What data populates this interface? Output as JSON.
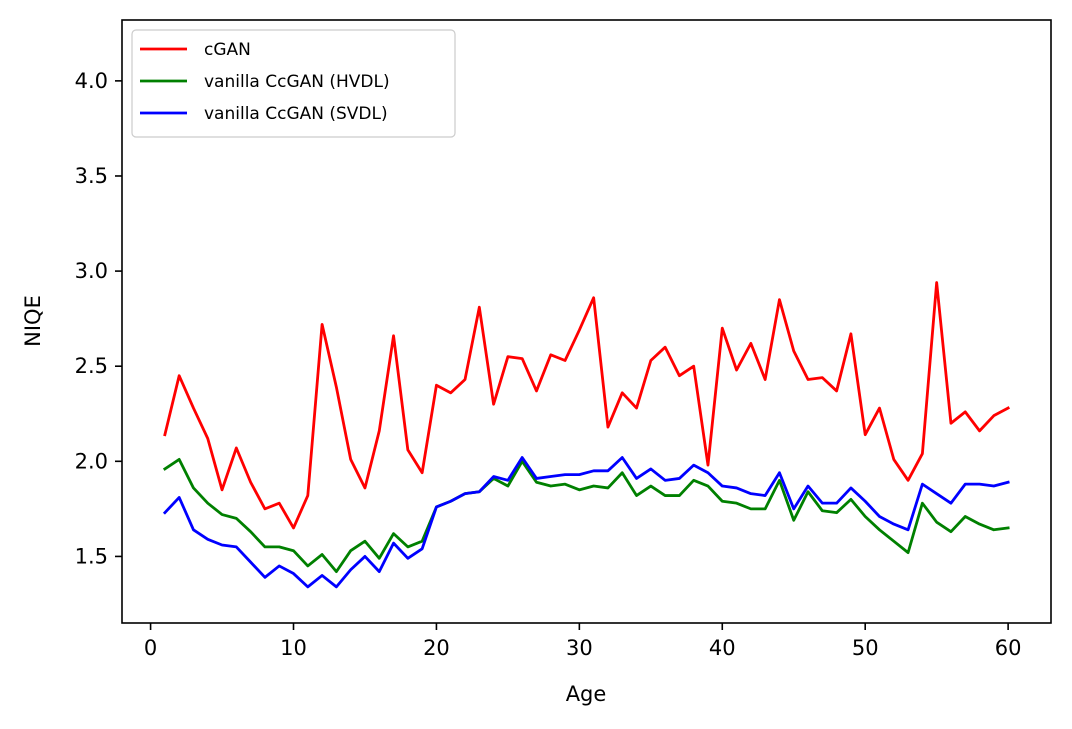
{
  "chart_data": {
    "type": "line",
    "title": "",
    "xlabel": "Age",
    "ylabel": "NIQE",
    "xlim": [
      -2,
      63
    ],
    "ylim": [
      1.15,
      4.32
    ],
    "xticks": [
      0,
      10,
      20,
      30,
      40,
      50,
      60
    ],
    "yticks": [
      1.5,
      2.0,
      2.5,
      3.0,
      3.5,
      4.0
    ],
    "grid": false,
    "legend_position": "top-left",
    "x": [
      1,
      2,
      3,
      4,
      5,
      6,
      7,
      8,
      9,
      10,
      11,
      12,
      13,
      14,
      15,
      16,
      17,
      18,
      19,
      20,
      21,
      22,
      23,
      24,
      25,
      26,
      27,
      28,
      29,
      30,
      31,
      32,
      33,
      34,
      35,
      36,
      37,
      38,
      39,
      40,
      41,
      42,
      43,
      44,
      45,
      46,
      47,
      48,
      49,
      50,
      51,
      52,
      53,
      54,
      55,
      56,
      57,
      58,
      59,
      60
    ],
    "series": [
      {
        "name": "cGAN",
        "color": "#ff0000",
        "values": [
          2.14,
          2.45,
          2.28,
          2.12,
          1.85,
          2.07,
          1.89,
          1.75,
          1.78,
          1.65,
          1.82,
          2.72,
          2.39,
          2.01,
          1.86,
          2.16,
          2.66,
          2.06,
          1.94,
          2.4,
          2.36,
          2.43,
          2.81,
          2.3,
          2.55,
          2.54,
          2.37,
          2.56,
          2.53,
          2.69,
          2.86,
          2.18,
          2.36,
          2.28,
          2.53,
          2.6,
          2.45,
          2.5,
          1.98,
          2.7,
          2.48,
          2.62,
          2.43,
          2.85,
          2.58,
          2.43,
          2.44,
          2.37,
          2.67,
          2.14,
          2.28,
          2.01,
          1.9,
          2.04,
          2.94,
          2.2,
          2.26,
          2.16,
          2.24,
          2.28
        ]
      },
      {
        "name": "vanilla CcGAN (HVDL)",
        "color": "#008000",
        "values": [
          1.96,
          2.01,
          1.86,
          1.78,
          1.72,
          1.7,
          1.63,
          1.55,
          1.55,
          1.53,
          1.45,
          1.51,
          1.42,
          1.53,
          1.58,
          1.49,
          1.62,
          1.55,
          1.58,
          1.76,
          1.79,
          1.83,
          1.84,
          1.91,
          1.87,
          2.0,
          1.89,
          1.87,
          1.88,
          1.85,
          1.87,
          1.86,
          1.94,
          1.82,
          1.87,
          1.82,
          1.82,
          1.9,
          1.87,
          1.79,
          1.78,
          1.75,
          1.75,
          1.9,
          1.69,
          1.84,
          1.74,
          1.73,
          1.8,
          1.71,
          1.64,
          1.58,
          1.52,
          1.78,
          1.68,
          1.63,
          1.71,
          1.67,
          1.64,
          1.65
        ]
      },
      {
        "name": "vanilla CcGAN (SVDL)",
        "color": "#0000ff",
        "values": [
          1.73,
          1.81,
          1.64,
          1.59,
          1.56,
          1.55,
          1.47,
          1.39,
          1.45,
          1.41,
          1.34,
          1.4,
          1.34,
          1.43,
          1.5,
          1.42,
          1.57,
          1.49,
          1.54,
          1.76,
          1.79,
          1.83,
          1.84,
          1.92,
          1.9,
          2.02,
          1.91,
          1.92,
          1.93,
          1.93,
          1.95,
          1.95,
          2.02,
          1.91,
          1.96,
          1.9,
          1.91,
          1.98,
          1.94,
          1.87,
          1.86,
          1.83,
          1.82,
          1.94,
          1.75,
          1.87,
          1.78,
          1.78,
          1.86,
          1.79,
          1.71,
          1.67,
          1.64,
          1.88,
          1.83,
          1.78,
          1.88,
          1.88,
          1.87,
          1.89
        ]
      }
    ]
  }
}
